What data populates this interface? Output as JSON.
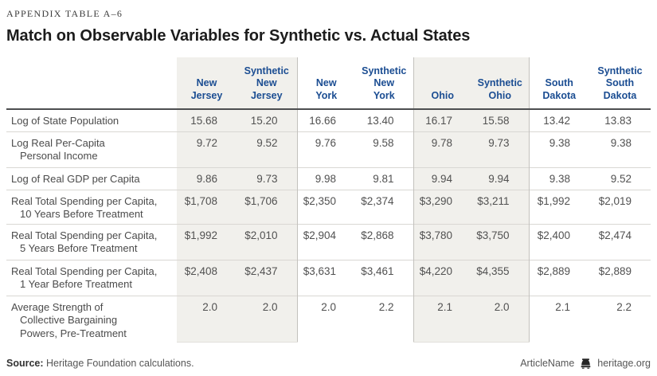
{
  "eyebrow": "Appendix Table A–6",
  "title": "Match on Observable Variables for Synthetic vs. Actual States",
  "table": {
    "columns": [
      {
        "id": "new-jersey",
        "label": "New\nJersey",
        "shaded": true,
        "divider": false
      },
      {
        "id": "synthetic-new-jersey",
        "label": "Synthetic\nNew\nJersey",
        "shaded": true,
        "divider": false
      },
      {
        "id": "new-york",
        "label": "New\nYork",
        "shaded": false,
        "divider": true
      },
      {
        "id": "synthetic-new-york",
        "label": "Synthetic\nNew\nYork",
        "shaded": false,
        "divider": false
      },
      {
        "id": "ohio",
        "label": "Ohio",
        "shaded": true,
        "divider": true
      },
      {
        "id": "synthetic-ohio",
        "label": "Synthetic\nOhio",
        "shaded": true,
        "divider": false
      },
      {
        "id": "south-dakota",
        "label": "South\nDakota",
        "shaded": false,
        "divider": true
      },
      {
        "id": "synthetic-south-dakota",
        "label": "Synthetic\nSouth\nDakota",
        "shaded": false,
        "divider": false
      }
    ],
    "rows": [
      {
        "label": "Log of State Population",
        "values": [
          "15.68",
          "15.20",
          "16.66",
          "13.40",
          "16.17",
          "15.58",
          "13.42",
          "13.83"
        ]
      },
      {
        "label": "Log Real Per-Capita\nPersonal Income",
        "values": [
          "9.72",
          "9.52",
          "9.76",
          "9.58",
          "9.78",
          "9.73",
          "9.38",
          "9.38"
        ]
      },
      {
        "label": "Log of Real GDP per Capita",
        "values": [
          "9.86",
          "9.73",
          "9.98",
          "9.81",
          "9.94",
          "9.94",
          "9.38",
          "9.52"
        ]
      },
      {
        "label": "Real Total Spending per Capita,\n10 Years Before Treatment",
        "values": [
          "$1,708",
          "$1,706",
          "$2,350",
          "$2,374",
          "$3,290",
          "$3,211",
          "$1,992",
          "$2,019"
        ]
      },
      {
        "label": "Real Total Spending per Capita,\n5 Years Before Treatment",
        "values": [
          "$1,992",
          "$2,010",
          "$2,904",
          "$2,868",
          "$3,780",
          "$3,750",
          "$2,400",
          "$2,474"
        ]
      },
      {
        "label": "Real Total Spending per Capita,\n1 Year Before Treatment",
        "values": [
          "$2,408",
          "$2,437",
          "$3,631",
          "$3,461",
          "$4,220",
          "$4,355",
          "$2,889",
          "$2,889"
        ]
      },
      {
        "label": "Average Strength of\nCollective Bargaining\nPowers, Pre-Treatment",
        "values": [
          "2.0",
          "2.0",
          "2.0",
          "2.2",
          "2.1",
          "2.0",
          "2.1",
          "2.2"
        ]
      }
    ]
  },
  "footer": {
    "source_label": "Source:",
    "source_text": " Heritage Foundation calculations.",
    "article_name": "ArticleName",
    "site": "heritage.org",
    "logo_icon": "liberty-bell-icon"
  },
  "chart_data": {
    "type": "table",
    "title": "Match on Observable Variables for Synthetic vs. Actual States",
    "columns": [
      "New Jersey",
      "Synthetic New Jersey",
      "New York",
      "Synthetic New York",
      "Ohio",
      "Synthetic Ohio",
      "South Dakota",
      "Synthetic South Dakota"
    ],
    "rows": [
      {
        "variable": "Log of State Population",
        "values": [
          15.68,
          15.2,
          16.66,
          13.4,
          16.17,
          15.58,
          13.42,
          13.83
        ]
      },
      {
        "variable": "Log Real Per-Capita Personal Income",
        "values": [
          9.72,
          9.52,
          9.76,
          9.58,
          9.78,
          9.73,
          9.38,
          9.38
        ]
      },
      {
        "variable": "Log of Real GDP per Capita",
        "values": [
          9.86,
          9.73,
          9.98,
          9.81,
          9.94,
          9.94,
          9.38,
          9.52
        ]
      },
      {
        "variable": "Real Total Spending per Capita, 10 Years Before Treatment",
        "values": [
          1708,
          1706,
          2350,
          2374,
          3290,
          3211,
          1992,
          2019
        ]
      },
      {
        "variable": "Real Total Spending per Capita, 5 Years Before Treatment",
        "values": [
          1992,
          2010,
          2904,
          2868,
          3780,
          3750,
          2400,
          2474
        ]
      },
      {
        "variable": "Real Total Spending per Capita, 1 Year Before Treatment",
        "values": [
          2408,
          2437,
          3631,
          3461,
          4220,
          4355,
          2889,
          2889
        ]
      },
      {
        "variable": "Average Strength of Collective Bargaining Powers, Pre-Treatment",
        "values": [
          2.0,
          2.0,
          2.0,
          2.2,
          2.1,
          2.0,
          2.1,
          2.2
        ]
      }
    ]
  },
  "colors": {
    "header_blue": "#1b4d92",
    "shade": "#f1f0ec",
    "header_rule": "#4d4e50",
    "row_rule": "#d9d7d3",
    "divider": "#c3c1bd",
    "title_text": "#1c1c1c",
    "body_text": "#515151"
  }
}
